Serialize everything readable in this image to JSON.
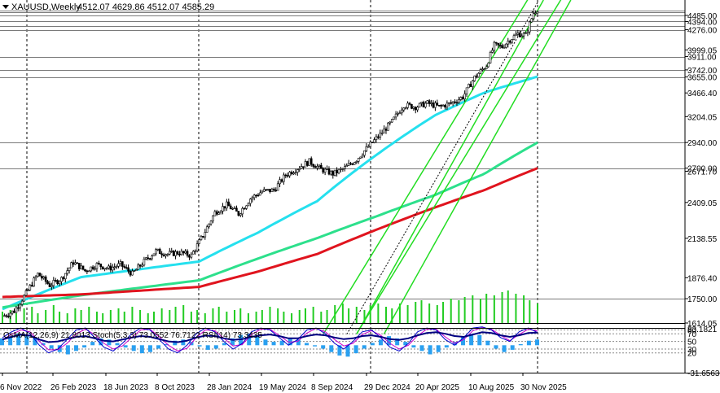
{
  "header": {
    "symbol_label": "XAUUSD,Weekly",
    "ohlc_label": "4512.07 4629.86 4512.07 4585.29"
  },
  "indicator_header": "OsMA(12,26,9) 21.8013  Stoch(5,3,3) 73.0552 76.7122  RSI(14) 73.3435",
  "colors": {
    "background": "#ffffff",
    "candle": "#000000",
    "grid": "#000000",
    "level_line": "#7a7a7a",
    "ema_cyan": "#25e0ee",
    "ema_green": "#2de08c",
    "ema_red": "#e0141e",
    "channel_green": "#22dd22",
    "trendline": "#000000",
    "volume": "#22cc22",
    "osma": "#2aa0f0",
    "stoch_main": "#0000cc",
    "stoch_signal": "#cc00cc",
    "rsi": "#000080"
  },
  "chart_data": {
    "type": "line",
    "description_type": "weekly candlestick price chart with EMAs, channels, volume and oscillators",
    "price_axis": {
      "ylim": [
        1614.05,
        4720
      ],
      "tick_labels": [
        "4485.00",
        "4394.00",
        "4276.00",
        "3999.05",
        "3911.00",
        "3742.00",
        "3655.00",
        "3466.40",
        "3204.05",
        "2940.00",
        "2700.00",
        "2671.70",
        "2409.05",
        "2138.55",
        "1876.40",
        "1750.00",
        "1614.05"
      ],
      "tick_values": [
        4485,
        4394,
        4276,
        3999.05,
        3911,
        3742,
        3655,
        3466.4,
        3204.05,
        2940,
        2700,
        2671.7,
        2409.05,
        2138.55,
        1876.4,
        1750,
        1614.05
      ]
    },
    "horizontal_levels": [
      4560,
      4530,
      4485,
      4394,
      4332,
      4276,
      3911,
      3742,
      3655,
      2940,
      2700,
      1750
    ],
    "x_axis_labels": [
      "6 Nov 2022",
      "26 Feb 2023",
      "18 Jun 2023",
      "8 Oct 2023",
      "28 Jan 2024",
      "19 May 2024",
      "8 Sep 2024",
      "29 Dec 2024",
      "20 Apr 2025",
      "10 Aug 2025",
      "30 Nov 2025"
    ],
    "price_series": {
      "name": "XAUUSD",
      "knots": [
        [
          0,
          1650
        ],
        [
          6,
          1680
        ],
        [
          12,
          1780
        ],
        [
          18,
          1900
        ],
        [
          24,
          1830
        ],
        [
          30,
          1870
        ],
        [
          36,
          1975
        ],
        [
          42,
          1920
        ],
        [
          48,
          1960
        ],
        [
          54,
          1935
        ],
        [
          60,
          1960
        ],
        [
          66,
          1900
        ],
        [
          72,
          1980
        ],
        [
          78,
          2050
        ],
        [
          84,
          2030
        ],
        [
          90,
          2040
        ],
        [
          96,
          2020
        ],
        [
          102,
          2160
        ],
        [
          108,
          2330
        ],
        [
          114,
          2390
        ],
        [
          120,
          2320
        ],
        [
          126,
          2440
        ],
        [
          132,
          2500
        ],
        [
          138,
          2510
        ],
        [
          144,
          2640
        ],
        [
          150,
          2700
        ],
        [
          156,
          2760
        ],
        [
          162,
          2690
        ],
        [
          168,
          2650
        ],
        [
          174,
          2700
        ],
        [
          180,
          2780
        ],
        [
          186,
          2900
        ],
        [
          192,
          3020
        ],
        [
          198,
          3150
        ],
        [
          204,
          3330
        ],
        [
          210,
          3310
        ],
        [
          216,
          3350
        ],
        [
          222,
          3310
        ],
        [
          228,
          3350
        ],
        [
          234,
          3420
        ],
        [
          240,
          3650
        ],
        [
          246,
          3800
        ],
        [
          250,
          4060
        ],
        [
          254,
          4040
        ],
        [
          258,
          4140
        ],
        [
          262,
          4220
        ],
        [
          266,
          4200
        ],
        [
          270,
          4520
        ],
        [
          272,
          4585
        ]
      ]
    },
    "ema_series": [
      {
        "knots": [
          [
            0,
            1690
          ],
          [
            40,
            1880
          ],
          [
            100,
            1980
          ],
          [
            130,
            2180
          ],
          [
            160,
            2420
          ],
          [
            190,
            2820
          ],
          [
            220,
            3220
          ],
          [
            245,
            3470
          ],
          [
            272,
            3660
          ]
        ]
      },
      {
        "knots": [
          [
            0,
            1700
          ],
          [
            40,
            1770
          ],
          [
            100,
            1860
          ],
          [
            130,
            2000
          ],
          [
            160,
            2140
          ],
          [
            190,
            2300
          ],
          [
            220,
            2470
          ],
          [
            245,
            2650
          ],
          [
            272,
            2940
          ]
        ]
      },
      {
        "knots": [
          [
            0,
            1760
          ],
          [
            40,
            1775
          ],
          [
            100,
            1820
          ],
          [
            130,
            1915
          ],
          [
            160,
            2030
          ],
          [
            190,
            2200
          ],
          [
            220,
            2370
          ],
          [
            245,
            2510
          ],
          [
            272,
            2700
          ]
        ]
      }
    ],
    "channels": [
      {
        "from": [
          163,
          1555
        ],
        "to": [
          270,
          4880
        ],
        "offset": 340
      },
      {
        "from": [
          180,
          1555
        ],
        "to": [
          275,
          4720
        ],
        "offset": 280
      }
    ],
    "trendline": {
      "from": [
        175,
        1555
      ],
      "to": [
        272,
        4680
      ]
    },
    "volume_levels": [
      0.35,
      0.4,
      0.3,
      0.45,
      0.5,
      0.3,
      0.4,
      0.55,
      0.35,
      0.3,
      0.45,
      0.4,
      0.5,
      0.35,
      0.3,
      0.4,
      0.45,
      0.35,
      0.5,
      0.4,
      0.3,
      0.35,
      0.45,
      0.4,
      0.5,
      0.55,
      0.35,
      0.4,
      0.3,
      0.45,
      0.5,
      0.35,
      0.4,
      0.45,
      0.3,
      0.35,
      0.4,
      0.5,
      0.45,
      0.35,
      0.3,
      0.4,
      0.45,
      0.5,
      0.35,
      0.4,
      0.55,
      0.6,
      0.45,
      0.5,
      0.4,
      0.55,
      0.6,
      0.5,
      0.45,
      0.6,
      0.55,
      0.65,
      0.7,
      0.6,
      0.55,
      0.65,
      0.75,
      0.7,
      0.8,
      0.85,
      0.75,
      0.9,
      0.85,
      0.95,
      1.0,
      0.9,
      0.85,
      0.7,
      0.6
    ],
    "oscillator_axis": {
      "tick_labels": [
        "83.1821",
        "80",
        "70",
        "50",
        "30",
        "20",
        "-31.6563"
      ],
      "tick_values": [
        83.1821,
        80,
        70,
        50,
        30,
        20,
        -31.6563
      ],
      "dashed_levels": [
        80,
        70,
        50,
        30,
        20
      ]
    },
    "osma_histogram": [
      0.6,
      0.8,
      1.0,
      0.9,
      0.6,
      0.2,
      -0.3,
      -0.6,
      -0.8,
      -0.5,
      -0.2,
      0.3,
      0.6,
      0.5,
      0.2,
      -0.2,
      -0.5,
      -0.7,
      -0.6,
      -0.3,
      0.1,
      0.4,
      0.5,
      0.3,
      -0.1,
      -0.4,
      -0.3,
      0.2,
      0.6,
      0.9,
      1.0,
      0.8,
      0.5,
      0.3,
      0.4,
      0.6,
      0.5,
      0.2,
      -0.1,
      -0.3,
      -0.6,
      -0.9,
      -1.0,
      -0.7,
      -0.3,
      0.2,
      0.5,
      0.8,
      0.6,
      0.3,
      -0.2,
      -0.5,
      -0.8,
      -0.6,
      -0.2,
      0.3,
      0.8,
      1.0,
      0.9,
      0.4,
      -0.3,
      -0.6,
      -0.4,
      0.1,
      0.4,
      0.5
    ],
    "stoch_main": [
      60,
      75,
      85,
      70,
      40,
      20,
      30,
      55,
      80,
      85,
      60,
      35,
      25,
      45,
      70,
      85,
      80,
      55,
      30,
      20,
      40,
      70,
      85,
      75,
      50,
      30,
      45,
      75,
      85,
      80,
      60,
      40,
      55,
      80,
      85,
      70,
      45,
      30,
      50,
      75,
      80,
      60,
      35,
      25,
      45,
      75,
      85,
      80,
      55,
      40,
      60,
      85,
      88,
      80,
      60,
      50,
      75,
      85,
      73
    ],
    "stoch_signal": [
      55,
      68,
      80,
      75,
      50,
      28,
      28,
      45,
      70,
      82,
      68,
      45,
      30,
      38,
      60,
      80,
      82,
      62,
      40,
      25,
      32,
      60,
      80,
      78,
      58,
      38,
      42,
      68,
      82,
      82,
      66,
      48,
      50,
      72,
      84,
      75,
      55,
      38,
      45,
      68,
      78,
      66,
      45,
      30,
      40,
      65,
      82,
      82,
      62,
      45,
      55,
      78,
      86,
      82,
      66,
      52,
      68,
      82,
      77
    ],
    "rsi": [
      55,
      62,
      68,
      65,
      55,
      48,
      50,
      56,
      62,
      64,
      58,
      52,
      50,
      55,
      60,
      64,
      62,
      56,
      50,
      48,
      52,
      60,
      65,
      64,
      58,
      54,
      56,
      62,
      66,
      68,
      64,
      58,
      58,
      64,
      68,
      66,
      60,
      56,
      58,
      64,
      66,
      62,
      56,
      54,
      58,
      66,
      72,
      74,
      70,
      64,
      62,
      68,
      74,
      72,
      66,
      62,
      66,
      72,
      73
    ]
  }
}
